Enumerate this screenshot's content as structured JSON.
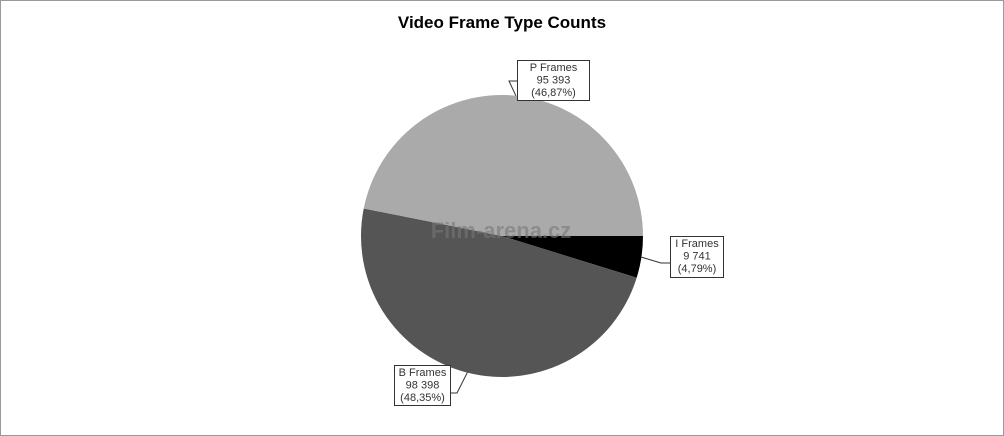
{
  "watermark": "Film-arena.cz",
  "chart_data": {
    "type": "pie",
    "title": "Video Frame Type Counts",
    "start_angle": "3 o'clock",
    "direction": "clockwise",
    "slices": [
      {
        "label": "I Frames",
        "value": 9741,
        "value_text": "9 741",
        "percent_text": "(4,79%)",
        "color": "#000000"
      },
      {
        "label": "B Frames",
        "value": 98398,
        "value_text": "98 398",
        "percent_text": "(48,35%)",
        "color": "#555555"
      },
      {
        "label": "P Frames",
        "value": 95393,
        "value_text": "95 393",
        "percent_text": "(46,87%)",
        "color": "#aaaaaa"
      }
    ]
  }
}
